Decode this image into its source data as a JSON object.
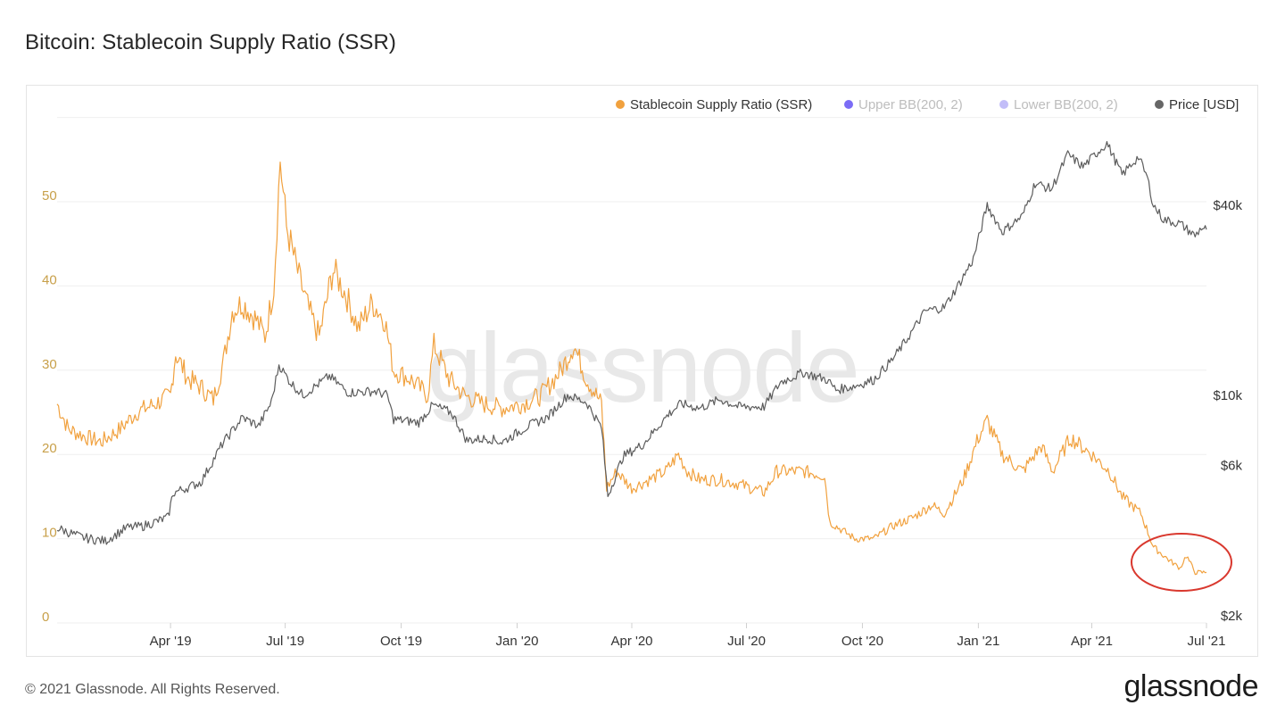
{
  "page": {
    "title": "Bitcoin: Stablecoin Supply Ratio (SSR)",
    "copyright": "© 2021 Glassnode. All Rights Reserved.",
    "logo_text": "glassnode",
    "watermark": "glassnode"
  },
  "chart_data": {
    "type": "line",
    "title": "Bitcoin: Stablecoin Supply Ratio (SSR)",
    "legend_position": "top-right",
    "legend": [
      {
        "name": "Stablecoin Supply Ratio (SSR)",
        "color": "#f1a13e",
        "active": true
      },
      {
        "name": "Upper BB(200, 2)",
        "color": "#7b6cf6",
        "active": false
      },
      {
        "name": "Lower BB(200, 2)",
        "color": "#c2bdf8",
        "active": false
      },
      {
        "name": "Price [USD]",
        "color": "#666666",
        "active": true
      }
    ],
    "x_range": [
      "2019-01-01",
      "2021-07-01"
    ],
    "x_ticks": [
      "Apr '19",
      "Jul '19",
      "Oct '19",
      "Jan '20",
      "Apr '20",
      "Jul '20",
      "Oct '20",
      "Jan '21",
      "Apr '21",
      "Jul '21"
    ],
    "y_left": {
      "min": 0,
      "max": 60,
      "ticks": [
        0,
        10,
        20,
        30,
        40,
        50
      ],
      "color": "#c8a04a"
    },
    "y_right": {
      "scale": "log",
      "ticks": [
        "$2k",
        "$6k",
        "$10k",
        "$40k"
      ],
      "tick_values": [
        2000,
        6000,
        10000,
        40000
      ]
    },
    "grid": true,
    "series": [
      {
        "name": "Stablecoin Supply Ratio (SSR)",
        "axis": "left",
        "color": "#f1a13e",
        "points": [
          [
            "2019-01-01",
            26
          ],
          [
            "2019-01-10",
            23
          ],
          [
            "2019-01-25",
            22
          ],
          [
            "2019-02-05",
            21.5
          ],
          [
            "2019-02-20",
            23
          ],
          [
            "2019-03-05",
            25
          ],
          [
            "2019-03-20",
            26
          ],
          [
            "2019-04-01",
            27
          ],
          [
            "2019-04-05",
            32
          ],
          [
            "2019-04-15",
            29
          ],
          [
            "2019-04-25",
            28
          ],
          [
            "2019-05-05",
            26.5
          ],
          [
            "2019-05-13",
            31
          ],
          [
            "2019-05-20",
            37
          ],
          [
            "2019-05-28",
            38
          ],
          [
            "2019-06-08",
            36
          ],
          [
            "2019-06-15",
            34
          ],
          [
            "2019-06-22",
            40
          ],
          [
            "2019-06-27",
            55
          ],
          [
            "2019-07-02",
            47
          ],
          [
            "2019-07-12",
            41
          ],
          [
            "2019-07-20",
            37
          ],
          [
            "2019-07-28",
            34
          ],
          [
            "2019-08-08",
            42
          ],
          [
            "2019-08-18",
            39
          ],
          [
            "2019-08-28",
            35
          ],
          [
            "2019-09-08",
            38
          ],
          [
            "2019-09-18",
            36
          ],
          [
            "2019-09-25",
            30
          ],
          [
            "2019-10-08",
            29
          ],
          [
            "2019-10-22",
            27
          ],
          [
            "2019-10-27",
            33
          ],
          [
            "2019-11-08",
            29
          ],
          [
            "2019-11-20",
            27
          ],
          [
            "2019-12-05",
            26
          ],
          [
            "2019-12-20",
            25.5
          ],
          [
            "2020-01-05",
            26
          ],
          [
            "2020-01-20",
            27
          ],
          [
            "2020-02-05",
            30
          ],
          [
            "2020-02-15",
            33
          ],
          [
            "2020-02-25",
            29
          ],
          [
            "2020-03-08",
            26
          ],
          [
            "2020-03-12",
            16
          ],
          [
            "2020-03-20",
            18
          ],
          [
            "2020-04-01",
            16
          ],
          [
            "2020-04-15",
            17
          ],
          [
            "2020-04-28",
            18
          ],
          [
            "2020-05-08",
            20
          ],
          [
            "2020-05-15",
            18
          ],
          [
            "2020-05-25",
            17
          ],
          [
            "2020-06-10",
            17
          ],
          [
            "2020-06-25",
            16.5
          ],
          [
            "2020-07-15",
            15.5
          ],
          [
            "2020-07-25",
            18
          ],
          [
            "2020-08-15",
            18
          ],
          [
            "2020-09-01",
            17.5
          ],
          [
            "2020-09-05",
            12
          ],
          [
            "2020-09-25",
            10
          ],
          [
            "2020-10-10",
            10
          ],
          [
            "2020-10-25",
            11.5
          ],
          [
            "2020-11-10",
            12.5
          ],
          [
            "2020-11-25",
            14
          ],
          [
            "2020-12-05",
            13
          ],
          [
            "2020-12-20",
            17
          ],
          [
            "2021-01-01",
            22
          ],
          [
            "2021-01-08",
            24
          ],
          [
            "2021-01-20",
            20
          ],
          [
            "2021-02-05",
            18
          ],
          [
            "2021-02-20",
            21
          ],
          [
            "2021-03-01",
            18
          ],
          [
            "2021-03-15",
            22
          ],
          [
            "2021-04-01",
            20
          ],
          [
            "2021-04-15",
            18
          ],
          [
            "2021-04-25",
            15
          ],
          [
            "2021-05-10",
            13
          ],
          [
            "2021-05-20",
            9
          ],
          [
            "2021-06-01",
            7.5
          ],
          [
            "2021-06-10",
            6.5
          ],
          [
            "2021-06-15",
            8
          ],
          [
            "2021-06-22",
            6
          ],
          [
            "2021-07-01",
            6
          ]
        ]
      },
      {
        "name": "Price [USD]",
        "axis": "right",
        "color": "#5c5c5c",
        "points": [
          [
            "2019-01-01",
            3800
          ],
          [
            "2019-01-20",
            3550
          ],
          [
            "2019-02-08",
            3450
          ],
          [
            "2019-02-25",
            3800
          ],
          [
            "2019-03-10",
            3850
          ],
          [
            "2019-03-30",
            4100
          ],
          [
            "2019-04-03",
            4900
          ],
          [
            "2019-04-25",
            5300
          ],
          [
            "2019-05-12",
            7000
          ],
          [
            "2019-05-28",
            8500
          ],
          [
            "2019-06-10",
            8000
          ],
          [
            "2019-06-20",
            9500
          ],
          [
            "2019-06-26",
            12500
          ],
          [
            "2019-07-05",
            11000
          ],
          [
            "2019-07-15",
            10000
          ],
          [
            "2019-08-05",
            11500
          ],
          [
            "2019-08-20",
            10200
          ],
          [
            "2019-09-10",
            10300
          ],
          [
            "2019-09-20",
            10000
          ],
          [
            "2019-09-25",
            8400
          ],
          [
            "2019-10-15",
            8200
          ],
          [
            "2019-10-26",
            9300
          ],
          [
            "2019-11-10",
            8800
          ],
          [
            "2019-11-22",
            7200
          ],
          [
            "2019-12-10",
            7300
          ],
          [
            "2019-12-20",
            7100
          ],
          [
            "2020-01-10",
            8000
          ],
          [
            "2020-01-25",
            8500
          ],
          [
            "2020-02-10",
            10000
          ],
          [
            "2020-02-25",
            9500
          ],
          [
            "2020-03-08",
            7900
          ],
          [
            "2020-03-13",
            4800
          ],
          [
            "2020-03-25",
            6400
          ],
          [
            "2020-04-10",
            7000
          ],
          [
            "2020-04-30",
            8700
          ],
          [
            "2020-05-10",
            9400
          ],
          [
            "2020-05-25",
            9100
          ],
          [
            "2020-06-10",
            9700
          ],
          [
            "2020-06-25",
            9200
          ],
          [
            "2020-07-15",
            9200
          ],
          [
            "2020-07-28",
            11000
          ],
          [
            "2020-08-15",
            11800
          ],
          [
            "2020-09-03",
            11200
          ],
          [
            "2020-09-10",
            10400
          ],
          [
            "2020-09-25",
            10700
          ],
          [
            "2020-10-10",
            11200
          ],
          [
            "2020-10-25",
            13000
          ],
          [
            "2020-11-05",
            15000
          ],
          [
            "2020-11-20",
            18500
          ],
          [
            "2020-12-05",
            19000
          ],
          [
            "2020-12-18",
            23000
          ],
          [
            "2020-12-28",
            27000
          ],
          [
            "2021-01-08",
            40000
          ],
          [
            "2021-01-20",
            33000
          ],
          [
            "2021-02-05",
            37000
          ],
          [
            "2021-02-15",
            47000
          ],
          [
            "2021-02-28",
            45000
          ],
          [
            "2021-03-13",
            58000
          ],
          [
            "2021-03-25",
            53000
          ],
          [
            "2021-04-13",
            63000
          ],
          [
            "2021-04-25",
            50000
          ],
          [
            "2021-05-08",
            57000
          ],
          [
            "2021-05-15",
            49000
          ],
          [
            "2021-05-20",
            40000
          ],
          [
            "2021-05-28",
            36000
          ],
          [
            "2021-06-10",
            35000
          ],
          [
            "2021-06-22",
            32000
          ],
          [
            "2021-06-27",
            34000
          ],
          [
            "2021-07-01",
            33500
          ]
        ]
      }
    ],
    "annotation": "red-circle-highlight"
  }
}
